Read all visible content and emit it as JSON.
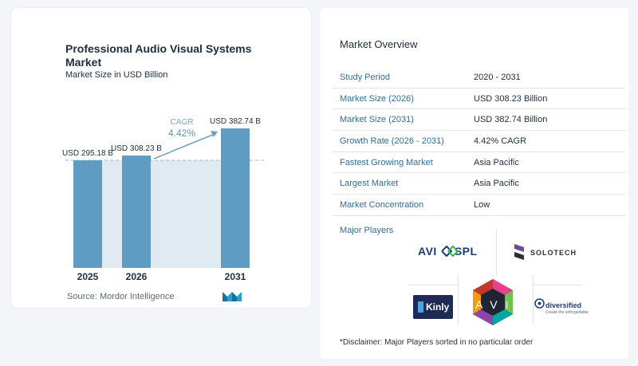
{
  "chart_data": {
    "type": "bar",
    "title": "Professional Audio Visual Systems Market",
    "subtitle": "Market Size in USD Billion",
    "categories": [
      "2025",
      "2026",
      "2031"
    ],
    "values": [
      295.18,
      308.23,
      382.74
    ],
    "value_labels": [
      "USD 295.18 B",
      "USD 308.23 B",
      "USD 382.74 B"
    ],
    "cagr_label": "CAGR",
    "cagr_value": "4.42%",
    "bar_color": "#5f9cc4",
    "band_color": "#dfeaf3",
    "ylim": [
      0,
      400
    ],
    "grid": false,
    "legend": "none"
  },
  "source": "Source:  Mordor Intelligence",
  "overview": {
    "title": "Market Overview",
    "rows": [
      {
        "label": "Study Period",
        "value": "2020 - 2031"
      },
      {
        "label": "Market Size (2026)",
        "value": "USD 308.23 Billion"
      },
      {
        "label": "Market Size (2031)",
        "value": "USD 382.74 Billion"
      },
      {
        "label": "Growth Rate (2026 - 2031)",
        "value": "4.42% CAGR"
      },
      {
        "label": "Fastest Growing Market",
        "value": "Asia Pacific"
      },
      {
        "label": "Largest Market",
        "value": "Asia Pacific"
      },
      {
        "label": "Market Concentration",
        "value": "Low"
      }
    ]
  },
  "players": {
    "title": "Major Players",
    "avi_spl": {
      "left": "AVI",
      "right": "SPL"
    },
    "solotech": "SOLOTECH",
    "kinly": "Kinly",
    "avi": "AVI",
    "diversified": "diversified",
    "diversified_tagline": "Create the unforgettable"
  },
  "disclaimer": "*Disclaimer: Major Players sorted in no particular order"
}
